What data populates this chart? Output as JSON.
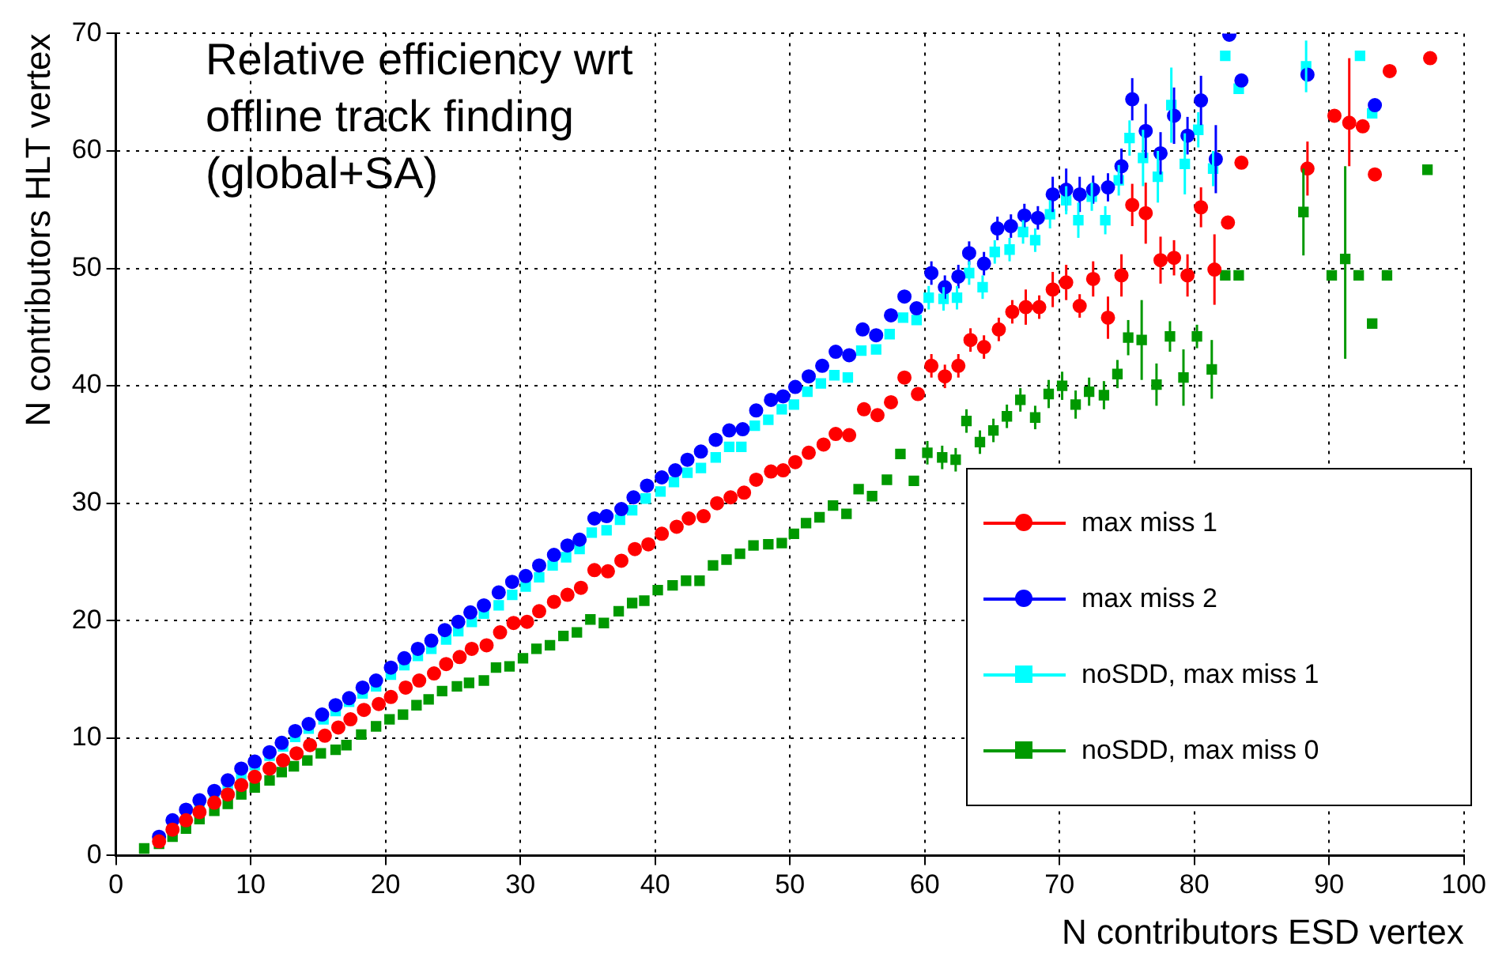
{
  "chart_data": {
    "type": "scatter",
    "xlabel": "N contributors ESD vertex",
    "ylabel": "N contributors HLT vertex",
    "annotations": [
      "Relative efficiency wrt offline track finding (global+SA)"
    ],
    "xlim": [
      0,
      100
    ],
    "xticks": [
      0,
      10,
      20,
      30,
      40,
      50,
      60,
      70,
      80,
      90,
      100
    ],
    "ylim": [
      0,
      70
    ],
    "yticks": [
      0,
      10,
      20,
      30,
      40,
      50,
      60,
      70
    ],
    "grid": true,
    "legend": "bottom right",
    "series": [
      {
        "name": "max miss 1",
        "color": "#ff0000",
        "marker": "circle",
        "x": [
          3.2,
          4.2,
          5.2,
          6.2,
          7.3,
          8.3,
          9.3,
          10.3,
          11.4,
          12.4,
          13.4,
          14.4,
          15.5,
          16.5,
          17.4,
          18.4,
          19.5,
          20.4,
          21.5,
          22.5,
          23.6,
          24.5,
          25.5,
          26.4,
          27.5,
          28.5,
          29.5,
          30.5,
          31.4,
          32.5,
          33.5,
          34.5,
          35.5,
          36.5,
          37.5,
          38.5,
          39.5,
          40.5,
          41.6,
          42.5,
          43.6,
          44.6,
          45.6,
          46.6,
          47.5,
          48.6,
          49.5,
          50.4,
          51.4,
          52.5,
          53.4,
          54.4,
          55.5,
          56.5,
          57.5,
          58.5,
          59.5,
          60.5,
          61.5,
          62.5,
          63.4,
          64.4,
          65.5,
          66.5,
          67.5,
          68.5,
          69.5,
          70.5,
          71.5,
          72.5,
          73.6,
          74.6,
          75.4,
          76.4,
          77.5,
          78.5,
          79.5,
          80.5,
          81.5,
          82.5,
          83.5,
          88.4,
          90.4,
          91.5,
          92.5,
          93.4,
          94.5,
          97.5
        ],
        "values": [
          1.2,
          2.2,
          3.0,
          3.7,
          4.5,
          5.2,
          6.0,
          6.7,
          7.4,
          8.1,
          8.7,
          9.4,
          10.2,
          10.9,
          11.6,
          12.4,
          12.9,
          13.5,
          14.3,
          14.9,
          15.5,
          16.3,
          16.9,
          17.6,
          17.9,
          19.0,
          19.8,
          19.9,
          20.8,
          21.6,
          22.2,
          22.8,
          24.3,
          24.2,
          25.1,
          26.1,
          26.5,
          27.4,
          28.0,
          28.7,
          28.9,
          30.0,
          30.5,
          30.9,
          32.0,
          32.7,
          32.8,
          33.5,
          34.3,
          35.0,
          35.9,
          35.8,
          38.0,
          37.5,
          38.6,
          40.7,
          39.3,
          41.7,
          40.8,
          41.7,
          43.9,
          43.3,
          44.8,
          46.3,
          46.7,
          46.7,
          48.2,
          48.8,
          46.8,
          49.1,
          45.8,
          49.4,
          55.4,
          54.7,
          50.7,
          50.9,
          49.4,
          55.2,
          49.9,
          53.9,
          59.0,
          58.5,
          63.0,
          62.4,
          62.1,
          58.0,
          66.8,
          67.9
        ],
        "errors": [
          null,
          null,
          null,
          null,
          null,
          null,
          null,
          null,
          null,
          null,
          null,
          null,
          null,
          null,
          null,
          null,
          null,
          null,
          null,
          null,
          null,
          null,
          null,
          null,
          null,
          null,
          null,
          null,
          null,
          null,
          null,
          null,
          null,
          null,
          null,
          null,
          null,
          null,
          null,
          null,
          null,
          null,
          null,
          null,
          null,
          null,
          null,
          null,
          null,
          null,
          null,
          null,
          null,
          null,
          null,
          null,
          null,
          1,
          1,
          1,
          1,
          1,
          1,
          1,
          1.5,
          1,
          1.5,
          1.5,
          1,
          1.5,
          1.8,
          1.8,
          1.8,
          2.6,
          2,
          1.5,
          1.8,
          1.7,
          3,
          null,
          null,
          2.3,
          null,
          [
            58.7,
            67.9
          ],
          null,
          null,
          null,
          null
        ]
      },
      {
        "name": "max miss 2",
        "color": "#0000ff",
        "marker": "circle",
        "x": [
          3.2,
          4.2,
          5.2,
          6.2,
          7.3,
          8.3,
          9.3,
          10.3,
          11.4,
          12.3,
          13.3,
          14.3,
          15.3,
          16.3,
          17.3,
          18.3,
          19.3,
          20.4,
          21.4,
          22.4,
          23.4,
          24.4,
          25.4,
          26.3,
          27.3,
          28.4,
          29.4,
          30.4,
          31.4,
          32.5,
          33.5,
          34.4,
          35.5,
          36.4,
          37.5,
          38.4,
          39.4,
          40.5,
          41.5,
          42.4,
          43.4,
          44.5,
          45.5,
          46.5,
          47.5,
          48.6,
          49.5,
          50.4,
          51.4,
          52.4,
          53.4,
          54.4,
          55.4,
          56.4,
          57.5,
          58.5,
          59.4,
          60.5,
          61.5,
          62.5,
          63.3,
          64.4,
          65.4,
          66.4,
          67.4,
          68.4,
          69.5,
          70.5,
          71.5,
          72.5,
          73.6,
          74.6,
          75.4,
          76.4,
          77.5,
          78.5,
          79.5,
          80.5,
          81.6,
          82.6,
          83.5,
          88.4,
          93.4
        ],
        "values": [
          1.6,
          3.0,
          3.9,
          4.7,
          5.5,
          6.4,
          7.4,
          8.0,
          8.8,
          9.6,
          10.6,
          11.2,
          12.0,
          12.8,
          13.4,
          14.3,
          14.9,
          16.0,
          16.8,
          17.6,
          18.3,
          19.2,
          19.9,
          20.7,
          21.3,
          22.4,
          23.3,
          23.8,
          24.7,
          25.6,
          26.4,
          26.9,
          28.7,
          28.9,
          29.5,
          30.5,
          31.5,
          32.2,
          32.8,
          33.7,
          34.4,
          35.4,
          36.2,
          36.3,
          37.9,
          38.8,
          39.1,
          39.9,
          40.8,
          41.7,
          42.9,
          42.6,
          44.8,
          44.3,
          46.0,
          47.6,
          46.6,
          49.6,
          48.4,
          49.3,
          51.3,
          50.4,
          53.4,
          53.6,
          54.5,
          54.3,
          56.3,
          56.7,
          56.3,
          56.7,
          56.9,
          58.7,
          64.4,
          61.7,
          59.8,
          63.0,
          61.3,
          64.3,
          59.3,
          69.9,
          66.0,
          66.5,
          63.9
        ],
        "errors": [
          null,
          null,
          null,
          null,
          null,
          null,
          null,
          null,
          null,
          null,
          null,
          null,
          null,
          null,
          null,
          null,
          null,
          null,
          null,
          null,
          null,
          null,
          null,
          null,
          null,
          null,
          null,
          null,
          null,
          null,
          null,
          null,
          null,
          null,
          null,
          null,
          null,
          null,
          null,
          null,
          null,
          null,
          null,
          null,
          null,
          null,
          null,
          null,
          null,
          null,
          null,
          null,
          null,
          null,
          null,
          null,
          null,
          1,
          1,
          1,
          1,
          1,
          1,
          1,
          1,
          1,
          1.5,
          1.8,
          1.5,
          1.2,
          1.2,
          1.5,
          1.8,
          2.3,
          1.8,
          2.4,
          1.6,
          2.1,
          2.9,
          null,
          null,
          null,
          null
        ]
      },
      {
        "name": "noSDD, max miss 1",
        "color": "#00ffff",
        "marker": "square",
        "x": [
          6.2,
          7.3,
          8.3,
          9.3,
          10.3,
          11.4,
          12.4,
          13.3,
          14.3,
          15.4,
          16.3,
          17.3,
          18.3,
          19.3,
          20.4,
          21.4,
          22.4,
          23.4,
          24.5,
          25.4,
          26.4,
          27.3,
          28.4,
          29.4,
          30.4,
          31.4,
          32.4,
          33.4,
          34.4,
          35.3,
          36.4,
          37.4,
          38.3,
          39.3,
          40.4,
          41.4,
          42.4,
          43.4,
          44.5,
          45.5,
          46.4,
          47.4,
          48.4,
          49.4,
          50.3,
          51.3,
          52.3,
          53.3,
          54.3,
          55.3,
          56.4,
          57.4,
          58.4,
          59.4,
          60.3,
          61.4,
          62.4,
          63.3,
          64.3,
          65.2,
          66.3,
          67.3,
          68.2,
          69.3,
          70.5,
          71.4,
          72.4,
          73.4,
          74.4,
          75.2,
          76.2,
          77.3,
          78.3,
          79.3,
          80.3,
          81.4,
          82.3,
          83.3,
          88.3,
          92.3,
          93.2
        ],
        "values": [
          4.4,
          5.2,
          6.0,
          6.9,
          7.7,
          8.5,
          9.3,
          10.1,
          10.8,
          11.6,
          12.3,
          13.1,
          13.8,
          14.4,
          15.4,
          16.2,
          17.0,
          17.6,
          18.4,
          19.1,
          19.9,
          20.6,
          21.3,
          22.2,
          22.9,
          23.7,
          24.7,
          25.4,
          26.1,
          27.5,
          27.7,
          28.6,
          29.4,
          30.4,
          31.0,
          31.8,
          32.6,
          33.0,
          33.9,
          34.8,
          34.8,
          36.6,
          37.1,
          38.0,
          38.4,
          39.5,
          40.2,
          40.9,
          40.7,
          43.0,
          43.1,
          44.4,
          45.8,
          45.6,
          47.5,
          47.4,
          47.5,
          49.6,
          48.4,
          51.4,
          51.6,
          53.1,
          52.4,
          54.6,
          55.8,
          54.1,
          56.1,
          54.1,
          57.5,
          61.1,
          59.4,
          57.8,
          63.9,
          58.9,
          61.8,
          58.5,
          68.1,
          65.3,
          67.2,
          68.1,
          63.2
        ],
        "errors": [
          null,
          null,
          null,
          null,
          null,
          null,
          null,
          null,
          null,
          null,
          null,
          null,
          null,
          null,
          null,
          null,
          null,
          null,
          null,
          null,
          null,
          null,
          null,
          null,
          null,
          null,
          null,
          null,
          null,
          null,
          null,
          null,
          null,
          null,
          null,
          null,
          null,
          null,
          null,
          null,
          null,
          null,
          null,
          null,
          null,
          null,
          null,
          null,
          null,
          null,
          null,
          null,
          null,
          null,
          1,
          1,
          1,
          1,
          1,
          1,
          1,
          1,
          1,
          1.2,
          1.2,
          1.5,
          1.2,
          1.2,
          1.3,
          1.5,
          2.4,
          2.2,
          3.2,
          2.6,
          1.5,
          1.5,
          null,
          null,
          2.2,
          null,
          null
        ]
      },
      {
        "name": "noSDD, max miss 0",
        "color": "#009900",
        "marker": "square",
        "x": [
          2.1,
          3.2,
          4.2,
          5.2,
          6.2,
          7.3,
          8.3,
          9.3,
          10.3,
          11.4,
          12.3,
          13.2,
          14.2,
          15.2,
          16.3,
          17.1,
          18.2,
          19.3,
          20.3,
          21.3,
          22.3,
          23.2,
          24.2,
          25.3,
          26.2,
          27.3,
          28.2,
          29.2,
          30.2,
          31.2,
          32.2,
          33.2,
          34.2,
          35.2,
          36.2,
          37.3,
          38.3,
          39.2,
          40.2,
          41.3,
          42.3,
          43.3,
          44.3,
          45.3,
          46.3,
          47.3,
          48.4,
          49.4,
          50.3,
          51.2,
          52.2,
          53.2,
          54.2,
          55.1,
          56.1,
          57.2,
          58.2,
          59.2,
          60.2,
          61.3,
          62.3,
          63.1,
          64.1,
          65.1,
          66.1,
          67.1,
          68.2,
          69.2,
          70.2,
          71.2,
          72.2,
          73.3,
          74.3,
          75.1,
          76.1,
          77.2,
          78.2,
          79.2,
          80.2,
          81.3,
          82.3,
          83.3,
          88.1,
          90.2,
          91.2,
          92.2,
          93.2,
          94.3,
          97.3
        ],
        "values": [
          0.6,
          1.0,
          1.6,
          2.3,
          3.1,
          3.8,
          4.4,
          5.2,
          5.8,
          6.4,
          7.1,
          7.6,
          8.1,
          8.7,
          9.0,
          9.4,
          10.3,
          11.0,
          11.6,
          12.0,
          12.8,
          13.3,
          14.0,
          14.4,
          14.7,
          14.9,
          16.0,
          16.1,
          16.8,
          17.6,
          17.9,
          18.7,
          19.0,
          20.1,
          19.8,
          20.8,
          21.5,
          21.7,
          22.6,
          23.0,
          23.4,
          23.4,
          24.7,
          25.2,
          25.7,
          26.4,
          26.5,
          26.6,
          27.4,
          28.3,
          28.8,
          29.8,
          29.1,
          31.2,
          30.6,
          32.0,
          34.2,
          31.9,
          34.3,
          33.9,
          33.7,
          37.0,
          35.2,
          36.2,
          37.4,
          38.8,
          37.3,
          39.3,
          40.0,
          38.4,
          39.5,
          39.2,
          41.0,
          44.1,
          43.9,
          40.1,
          44.2,
          40.7,
          44.2,
          41.4,
          49.4,
          49.4,
          54.8,
          49.4,
          50.8,
          49.4,
          45.3,
          49.4,
          58.4
        ],
        "errors": [
          null,
          null,
          null,
          null,
          null,
          null,
          null,
          null,
          null,
          null,
          null,
          null,
          null,
          null,
          null,
          null,
          null,
          null,
          null,
          null,
          null,
          null,
          null,
          null,
          null,
          null,
          null,
          null,
          null,
          null,
          null,
          null,
          null,
          null,
          null,
          null,
          null,
          null,
          null,
          null,
          null,
          null,
          null,
          null,
          null,
          null,
          null,
          null,
          null,
          null,
          null,
          null,
          null,
          null,
          null,
          null,
          null,
          null,
          1,
          1,
          1,
          1,
          1,
          1,
          1,
          1,
          1,
          1.2,
          1.2,
          1.2,
          1.2,
          1.2,
          1.2,
          1.5,
          3.4,
          1.8,
          1.3,
          2.4,
          1,
          2.5,
          null,
          null,
          3.7,
          null,
          [
            42.3,
            58.7
          ],
          null,
          null,
          null,
          null
        ]
      }
    ]
  }
}
